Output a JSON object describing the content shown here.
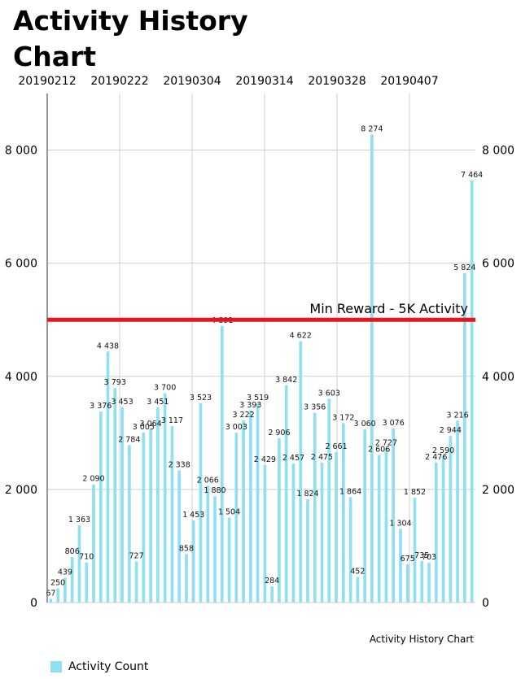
{
  "title": "Activity History Chart",
  "description": "Activity History Chart",
  "legend_label": "Activity Count",
  "colors": {
    "bar": "#8ee0f2",
    "threshold": "#e8141c",
    "grid": "#cfcfcf"
  },
  "chart_data": {
    "type": "bar",
    "title": "Activity History Chart",
    "x_tick_labels": [
      "20190212",
      "20190222",
      "20190304",
      "20190314",
      "20190328",
      "20190407"
    ],
    "y_tick_labels": [
      "0",
      "2 000",
      "4 000",
      "6 000",
      "8 000"
    ],
    "ylim": [
      0,
      9000
    ],
    "grid": true,
    "legend_position": "bottom-left",
    "series": [
      {
        "name": "Activity Count",
        "values": [
          67,
          250,
          439,
          806,
          1363,
          710,
          2090,
          3376,
          4438,
          3793,
          3453,
          2784,
          727,
          3005,
          3064,
          3451,
          3700,
          3117,
          2338,
          858,
          1453,
          3523,
          2066,
          1880,
          4891,
          1504,
          3003,
          3222,
          3393,
          3519,
          2429,
          284,
          2906,
          3842,
          2457,
          4622,
          1824,
          3356,
          2475,
          3603,
          2661,
          3172,
          1864,
          452,
          3060,
          8274,
          2606,
          2727,
          3076,
          1304,
          675,
          1852,
          735,
          703,
          2476,
          2590,
          2944,
          3216,
          5824,
          7464
        ],
        "labels": [
          "67",
          "250",
          "439",
          "806",
          "1 363",
          "710",
          "2 090",
          "3 376",
          "4 438",
          "3 793",
          "3 453",
          "2 784",
          "727",
          "3 005",
          "3 064",
          "3 451",
          "3 700",
          "3 117",
          "2 338",
          "858",
          "1 453",
          "3 523",
          "2 066",
          "1 880",
          "4 891",
          "1 504",
          "3 003",
          "3 222",
          "3 393",
          "3 519",
          "2 429",
          "284",
          "2 906",
          "3 842",
          "2 457",
          "4 622",
          "1 824",
          "3 356",
          "2 475",
          "3 603",
          "2 661",
          "3 172",
          "1 864",
          "452",
          "3 060",
          "8 274",
          "2 606",
          "2 727",
          "3 076",
          "1 304",
          "675",
          "1 852",
          "735",
          "703",
          "2 476",
          "2 590",
          "2 944",
          "3 216",
          "5 824",
          "7 464"
        ]
      }
    ],
    "threshold": {
      "value": 5000,
      "label": "Min Reward - 5K Activity"
    }
  }
}
